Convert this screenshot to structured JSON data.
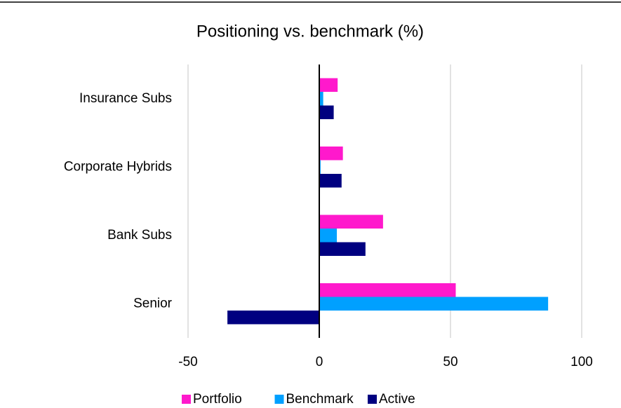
{
  "chart_data": {
    "type": "bar",
    "orientation": "horizontal",
    "title": "Positioning vs. benchmark (%)",
    "categories": [
      "Insurance Subs",
      "Corporate Hybrids",
      "Bank Subs",
      "Senior"
    ],
    "series": [
      {
        "name": "Portfolio",
        "color": "#ff19cc",
        "values": [
          7,
          9,
          24.3,
          52
        ]
      },
      {
        "name": "Benchmark",
        "color": "#00a0ff",
        "values": [
          1.5,
          0.5,
          6.7,
          87.2
        ]
      },
      {
        "name": "Active",
        "color": "#000080",
        "values": [
          5.5,
          8.5,
          17.6,
          -35
        ]
      }
    ],
    "xlim": [
      -50,
      100
    ],
    "xticks": [
      -50,
      0,
      50,
      100
    ],
    "grid": true,
    "legend": "bottom"
  }
}
